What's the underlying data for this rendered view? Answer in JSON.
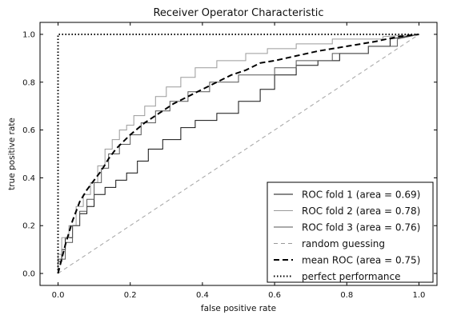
{
  "chart_data": {
    "type": "line",
    "title": "Receiver Operator Characteristic",
    "xlabel": "false positive rate",
    "ylabel": "true positive rate",
    "xlim": [
      -0.05,
      1.05
    ],
    "ylim": [
      -0.05,
      1.05
    ],
    "xticks": [
      0.0,
      0.2,
      0.4,
      0.6,
      0.8,
      1.0
    ],
    "yticks": [
      0.0,
      0.2,
      0.4,
      0.6,
      0.8,
      1.0
    ],
    "tick_labels_x": [
      "0.0",
      "0.2",
      "0.4",
      "0.6",
      "0.8",
      "1.0"
    ],
    "tick_labels_y": [
      "0.0",
      "0.2",
      "0.4",
      "0.6",
      "0.8",
      "1.0"
    ],
    "grid": false,
    "legend_position": "lower-right",
    "series": [
      {
        "name": "ROC fold 1 (area = 0.69)",
        "color": "#111111",
        "dash": "solid",
        "x": [
          0.0,
          0.0,
          0.01,
          0.01,
          0.02,
          0.02,
          0.04,
          0.04,
          0.06,
          0.06,
          0.08,
          0.08,
          0.1,
          0.1,
          0.13,
          0.13,
          0.16,
          0.16,
          0.19,
          0.19,
          0.22,
          0.22,
          0.25,
          0.25,
          0.29,
          0.29,
          0.34,
          0.34,
          0.38,
          0.38,
          0.44,
          0.44,
          0.5,
          0.5,
          0.56,
          0.56,
          0.6,
          0.6,
          0.66,
          0.66,
          0.72,
          0.72,
          0.78,
          0.78,
          0.86,
          0.86,
          0.92,
          0.92,
          1.0
        ],
        "y": [
          0.0,
          0.05,
          0.05,
          0.1,
          0.1,
          0.15,
          0.15,
          0.2,
          0.2,
          0.25,
          0.25,
          0.28,
          0.28,
          0.33,
          0.33,
          0.36,
          0.36,
          0.39,
          0.39,
          0.42,
          0.42,
          0.47,
          0.47,
          0.52,
          0.52,
          0.56,
          0.56,
          0.61,
          0.61,
          0.64,
          0.64,
          0.67,
          0.67,
          0.72,
          0.72,
          0.77,
          0.77,
          0.83,
          0.83,
          0.87,
          0.87,
          0.89,
          0.89,
          0.92,
          0.92,
          0.95,
          0.95,
          0.98,
          1.0
        ]
      },
      {
        "name": "ROC fold 2 (area = 0.78)",
        "color": "#9a9a9a",
        "dash": "solid",
        "x": [
          0.0,
          0.0,
          0.01,
          0.01,
          0.03,
          0.03,
          0.05,
          0.05,
          0.07,
          0.07,
          0.09,
          0.09,
          0.11,
          0.11,
          0.13,
          0.13,
          0.15,
          0.15,
          0.17,
          0.17,
          0.19,
          0.19,
          0.21,
          0.21,
          0.24,
          0.24,
          0.27,
          0.27,
          0.3,
          0.3,
          0.34,
          0.34,
          0.38,
          0.38,
          0.44,
          0.44,
          0.52,
          0.52,
          0.58,
          0.58,
          0.66,
          0.66,
          0.76,
          0.76,
          0.9,
          0.9,
          1.0
        ],
        "y": [
          0.0,
          0.08,
          0.08,
          0.15,
          0.15,
          0.2,
          0.2,
          0.28,
          0.28,
          0.33,
          0.33,
          0.38,
          0.38,
          0.45,
          0.45,
          0.52,
          0.52,
          0.56,
          0.56,
          0.6,
          0.6,
          0.62,
          0.62,
          0.66,
          0.66,
          0.7,
          0.7,
          0.74,
          0.74,
          0.78,
          0.78,
          0.82,
          0.82,
          0.86,
          0.86,
          0.89,
          0.89,
          0.92,
          0.92,
          0.94,
          0.94,
          0.96,
          0.96,
          0.98,
          0.98,
          0.99,
          1.0
        ]
      },
      {
        "name": "ROC fold 3 (area = 0.76)",
        "color": "#555555",
        "dash": "solid",
        "x": [
          0.0,
          0.0,
          0.02,
          0.02,
          0.04,
          0.04,
          0.06,
          0.06,
          0.08,
          0.08,
          0.1,
          0.1,
          0.12,
          0.12,
          0.14,
          0.14,
          0.17,
          0.17,
          0.2,
          0.2,
          0.23,
          0.23,
          0.27,
          0.27,
          0.31,
          0.31,
          0.36,
          0.36,
          0.42,
          0.42,
          0.5,
          0.5,
          0.6,
          0.6,
          0.66,
          0.66,
          0.76,
          0.76,
          0.86,
          0.86,
          0.94,
          0.94,
          1.0
        ],
        "y": [
          0.0,
          0.06,
          0.06,
          0.13,
          0.13,
          0.2,
          0.2,
          0.26,
          0.26,
          0.31,
          0.31,
          0.38,
          0.38,
          0.44,
          0.44,
          0.5,
          0.5,
          0.54,
          0.54,
          0.58,
          0.58,
          0.63,
          0.63,
          0.68,
          0.68,
          0.72,
          0.72,
          0.76,
          0.76,
          0.8,
          0.8,
          0.83,
          0.83,
          0.86,
          0.86,
          0.89,
          0.89,
          0.92,
          0.92,
          0.95,
          0.95,
          0.98,
          1.0
        ]
      },
      {
        "name": "random guessing",
        "color": "#999999",
        "dash": "dashed",
        "x": [
          0.0,
          1.0
        ],
        "y": [
          0.0,
          1.0
        ]
      },
      {
        "name": "mean ROC (area = 0.75)",
        "color": "#000000",
        "dash": "bold-dashed",
        "x": [
          0.0,
          0.02,
          0.04,
          0.06,
          0.08,
          0.1,
          0.12,
          0.14,
          0.16,
          0.18,
          0.2,
          0.24,
          0.28,
          0.32,
          0.36,
          0.4,
          0.44,
          0.48,
          0.52,
          0.56,
          0.6,
          0.66,
          0.72,
          0.8,
          0.88,
          0.94,
          1.0
        ],
        "y": [
          0.0,
          0.12,
          0.22,
          0.3,
          0.35,
          0.39,
          0.43,
          0.48,
          0.52,
          0.55,
          0.58,
          0.63,
          0.67,
          0.71,
          0.74,
          0.77,
          0.8,
          0.83,
          0.85,
          0.88,
          0.89,
          0.91,
          0.93,
          0.95,
          0.97,
          0.99,
          1.0
        ]
      },
      {
        "name": "perfect performance",
        "color": "#000000",
        "dash": "dotted",
        "x": [
          0.0,
          0.0,
          1.0
        ],
        "y": [
          0.0,
          1.0,
          1.0
        ]
      }
    ]
  }
}
